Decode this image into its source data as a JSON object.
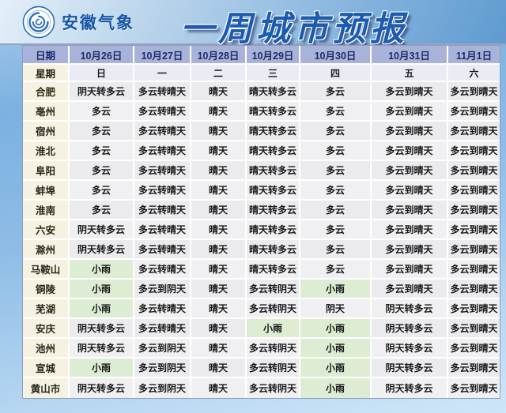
{
  "banner": {
    "logo": "anhui-meteorology-spiral-logo",
    "agency": "安徽气象",
    "title": "一周城市预报"
  },
  "table": {
    "date_header_label": "日期",
    "week_header_label": "星期",
    "dates": [
      "10月26日",
      "10月27日",
      "10月28日",
      "10月29日",
      "10月30日",
      "10月31日",
      "11月1日"
    ],
    "weekdays": [
      "日",
      "一",
      "二",
      "三",
      "四",
      "五",
      "六"
    ],
    "rain_label": "小雨",
    "rows": [
      {
        "city": "合肥",
        "forecast": [
          "阴天转多云",
          "多云转晴天",
          "晴天",
          "晴天转多云",
          "多云",
          "多云到晴天",
          "多云到晴天"
        ]
      },
      {
        "city": "亳州",
        "forecast": [
          "多云",
          "多云转晴天",
          "晴天",
          "晴天转多云",
          "多云",
          "多云到晴天",
          "多云到晴天"
        ]
      },
      {
        "city": "宿州",
        "forecast": [
          "多云",
          "多云转晴天",
          "晴天",
          "晴天转多云",
          "多云",
          "多云到晴天",
          "多云到晴天"
        ]
      },
      {
        "city": "淮北",
        "forecast": [
          "多云",
          "多云转晴天",
          "晴天",
          "晴天转多云",
          "多云",
          "多云到晴天",
          "多云到晴天"
        ]
      },
      {
        "city": "阜阳",
        "forecast": [
          "多云",
          "多云转晴天",
          "晴天",
          "晴天转多云",
          "多云",
          "多云到晴天",
          "多云到晴天"
        ]
      },
      {
        "city": "蚌埠",
        "forecast": [
          "多云",
          "多云转晴天",
          "晴天",
          "晴天转多云",
          "多云",
          "多云到晴天",
          "多云到晴天"
        ]
      },
      {
        "city": "淮南",
        "forecast": [
          "多云",
          "多云转晴天",
          "晴天",
          "晴天转多云",
          "多云",
          "多云到晴天",
          "多云到晴天"
        ]
      },
      {
        "city": "六安",
        "forecast": [
          "阴天转多云",
          "多云转晴天",
          "晴天",
          "晴天转多云",
          "多云",
          "多云到晴天",
          "多云到晴天"
        ]
      },
      {
        "city": "滁州",
        "forecast": [
          "阴天转多云",
          "多云转晴天",
          "晴天",
          "晴天转多云",
          "多云",
          "多云到晴天",
          "多云到晴天"
        ]
      },
      {
        "city": "马鞍山",
        "forecast": [
          "小雨",
          "多云转晴天",
          "晴天",
          "晴天转多云",
          "多云",
          "多云到晴天",
          "多云到晴天"
        ]
      },
      {
        "city": "铜陵",
        "forecast": [
          "小雨",
          "多云到阴天",
          "晴天",
          "多云转阴天",
          "小雨",
          "多云到晴天",
          "多云到晴天"
        ]
      },
      {
        "city": "芜湖",
        "forecast": [
          "小雨",
          "多云转晴天",
          "晴天",
          "多云转阴天",
          "阴天",
          "阴天转多云",
          "多云到晴天"
        ]
      },
      {
        "city": "安庆",
        "forecast": [
          "阴天转多云",
          "多云转晴天",
          "晴天",
          "小雨",
          "小雨",
          "阴天转多云",
          "多云到晴天"
        ]
      },
      {
        "city": "池州",
        "forecast": [
          "阴天转多云",
          "多云到阴天",
          "晴天",
          "多云转阴天",
          "小雨",
          "阴天转多云",
          "多云到晴天"
        ]
      },
      {
        "city": "宣城",
        "forecast": [
          "小雨",
          "多云到阴天",
          "晴天",
          "多云转阴天",
          "小雨",
          "阴天转多云",
          "多云到晴天"
        ]
      },
      {
        "city": "黄山市",
        "forecast": [
          "阴天转多云",
          "多云到阴天",
          "晴天",
          "多云转阴天",
          "小雨",
          "阴天转多云",
          "多云到晴天"
        ]
      }
    ]
  },
  "colors": {
    "header_bg": "#a9b3d9",
    "header_text": "#1c2d6b",
    "city_column_bg": "#f6f2e2",
    "week_row_bg": "#e9ecf4",
    "data_cell_bg": "#ebebee",
    "rain_cell_bg": "#dcedd4",
    "title_blue": "#1b5cb0",
    "agency_blue": "#1656a6",
    "banner_gradient_start": "#e4eff9",
    "banner_gradient_end": "#5f9bd0"
  }
}
